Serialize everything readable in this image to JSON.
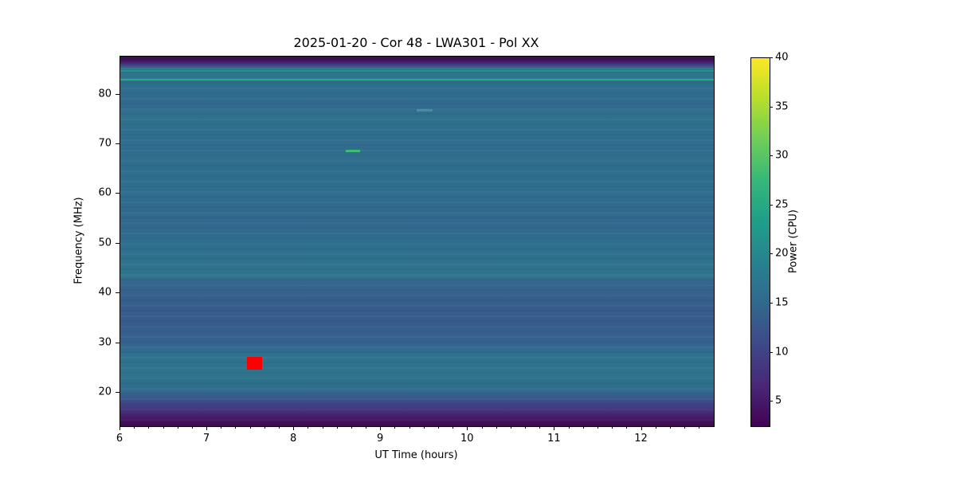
{
  "chart_data": {
    "type": "heatmap",
    "title": "2025-01-20 - Cor 48 - LWA301 - Pol XX",
    "xlabel": "UT Time (hours)",
    "ylabel": "Frequency (MHz)",
    "colorbar_label": "Power (CPU)",
    "colormap": "viridis",
    "xlim": [
      6.0,
      12.83
    ],
    "ylim": [
      13.3,
      87.6
    ],
    "x_ticks": [
      6,
      7,
      8,
      9,
      10,
      11,
      12
    ],
    "x_minor_tick_step_hours": 0.16667,
    "y_ticks": [
      20,
      30,
      40,
      50,
      60,
      70,
      80
    ],
    "colorbar_ticks": [
      5,
      10,
      15,
      20,
      25,
      30,
      35,
      40
    ],
    "colorbar_range": [
      2.5,
      40
    ],
    "grid": false,
    "legend": "none",
    "colormap_stops_top_to_bottom": [
      "#fde725",
      "#b5de2b",
      "#6ece58",
      "#35b779",
      "#1f9e89",
      "#26828e",
      "#31688e",
      "#3e4989",
      "#482878",
      "#440154"
    ],
    "mean_spectrum_bands": [
      {
        "freq_mhz": 87.6,
        "color": "#2c0b44"
      },
      {
        "freq_mhz": 87.0,
        "color": "#440c58"
      },
      {
        "freq_mhz": 86.3,
        "color": "#472a77"
      },
      {
        "freq_mhz": 85.7,
        "color": "#3f4f8a"
      },
      {
        "freq_mhz": 85.2,
        "color": "#32688e"
      },
      {
        "freq_mhz": 84.4,
        "color": "#2d788e"
      },
      {
        "freq_mhz": 83.5,
        "color": "#2e728e"
      },
      {
        "freq_mhz": 82.0,
        "color": "#2e6e8e"
      },
      {
        "freq_mhz": 78.0,
        "color": "#31698e"
      },
      {
        "freq_mhz": 75.2,
        "color": "#2f718d"
      },
      {
        "freq_mhz": 70.0,
        "color": "#306c8e"
      },
      {
        "freq_mhz": 62.0,
        "color": "#2f6f8e"
      },
      {
        "freq_mhz": 54.0,
        "color": "#31688e"
      },
      {
        "freq_mhz": 49.0,
        "color": "#2e6f8e"
      },
      {
        "freq_mhz": 43.9,
        "color": "#2e748c"
      },
      {
        "freq_mhz": 42.8,
        "color": "#336a8e"
      },
      {
        "freq_mhz": 39.5,
        "color": "#365f8d"
      },
      {
        "freq_mhz": 34.7,
        "color": "#375b8d"
      },
      {
        "freq_mhz": 29.9,
        "color": "#356390"
      },
      {
        "freq_mhz": 27.5,
        "color": "#2f7290"
      },
      {
        "freq_mhz": 23.5,
        "color": "#2e748b"
      },
      {
        "freq_mhz": 20.3,
        "color": "#306b8e"
      },
      {
        "freq_mhz": 18.7,
        "color": "#3a538c"
      },
      {
        "freq_mhz": 17.1,
        "color": "#433c83"
      },
      {
        "freq_mhz": 15.8,
        "color": "#472775"
      },
      {
        "freq_mhz": 14.5,
        "color": "#45125e"
      },
      {
        "freq_mhz": 13.3,
        "color": "#3c0a50"
      }
    ],
    "features": [
      {
        "name": "band-line-83mhz",
        "shape": "rect",
        "color": "#28ae83",
        "opacity": 0.95,
        "x_hours": [
          6.0,
          12.83
        ],
        "freq_mhz": [
          82.8,
          83.15
        ]
      },
      {
        "name": "band-line-84-7mhz",
        "shape": "rect",
        "color": "#279a8b",
        "opacity": 0.8,
        "x_hours": [
          6.0,
          12.83
        ],
        "freq_mhz": [
          84.6,
          84.85
        ]
      },
      {
        "name": "band-line-85mhz",
        "shape": "rect",
        "color": "#2a9d8a",
        "opacity": 0.55,
        "x_hours": [
          6.0,
          12.83
        ],
        "freq_mhz": [
          85.0,
          85.2
        ]
      },
      {
        "name": "band-line-43mhz",
        "shape": "rect",
        "color": "#2d8a8e",
        "opacity": 0.4,
        "x_hours": [
          6.0,
          12.83
        ],
        "freq_mhz": [
          43.3,
          43.8
        ]
      },
      {
        "name": "blanked-rfi-marker",
        "shape": "rect",
        "color": "#fb0000",
        "opacity": 1,
        "x_hours": [
          7.46,
          7.63
        ],
        "freq_mhz": [
          24.7,
          27.2
        ]
      },
      {
        "name": "emission-dash-strong",
        "shape": "rect",
        "color": "#3dbc74",
        "opacity": 1,
        "x_hours": [
          8.59,
          8.76
        ],
        "freq_mhz": [
          68.3,
          68.8
        ]
      },
      {
        "name": "emission-dash-faint",
        "shape": "rect",
        "color": "#58aab4",
        "opacity": 0.55,
        "x_hours": [
          9.41,
          9.59
        ],
        "freq_mhz": [
          76.6,
          77.0
        ]
      }
    ]
  }
}
